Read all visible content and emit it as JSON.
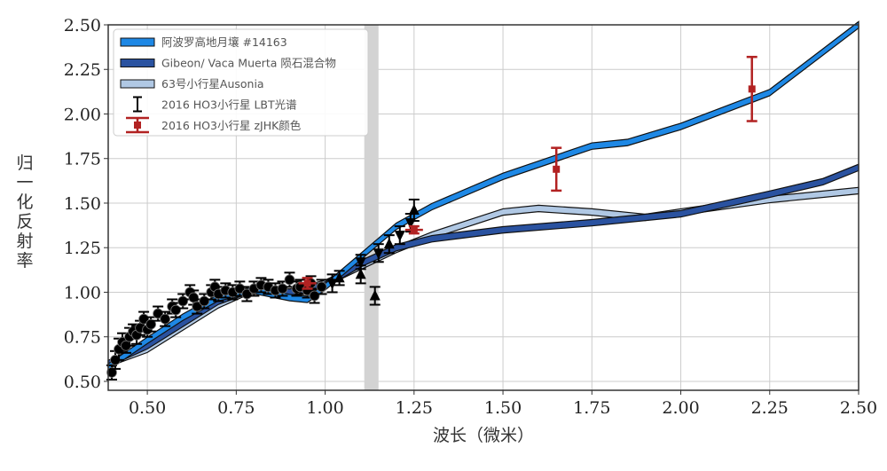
{
  "chart_data": {
    "type": "line",
    "xlabel": "波长（微米）",
    "ylabel": "归一化反射率",
    "xlim": [
      0.39,
      2.5
    ],
    "ylim": [
      0.45,
      2.5
    ],
    "xticks": [
      "0.50",
      "0.75",
      "1.00",
      "1.25",
      "1.50",
      "1.75",
      "2.00",
      "2.25",
      "2.50"
    ],
    "yticks": [
      "0.50",
      "0.75",
      "1.00",
      "1.25",
      "1.50",
      "1.75",
      "2.00",
      "2.25",
      "2.50"
    ],
    "grid": true,
    "legend_position": "top-left",
    "shaded_band": [
      1.11,
      1.15
    ],
    "series": [
      {
        "name": "阿波罗高地月壤 #14163",
        "kind": "band",
        "color": "#1e88e5",
        "x": [
          0.39,
          0.5,
          0.6,
          0.7,
          0.8,
          0.9,
          0.95,
          1.0,
          1.1,
          1.2,
          1.3,
          1.5,
          1.75,
          1.85,
          2.0,
          2.25,
          2.5
        ],
        "y": [
          0.58,
          0.73,
          0.86,
          0.97,
          1.01,
          0.97,
          0.96,
          1.03,
          1.2,
          1.37,
          1.48,
          1.65,
          1.82,
          1.84,
          1.93,
          2.12,
          2.5
        ]
      },
      {
        "name": "Gibeon/ Vaca Muerta 陨石混合物",
        "kind": "band",
        "color": "#2a52a0",
        "x": [
          0.39,
          0.5,
          0.7,
          0.8,
          0.9,
          1.0,
          1.1,
          1.2,
          1.3,
          1.5,
          1.75,
          2.0,
          2.25,
          2.4,
          2.5
        ],
        "y": [
          0.6,
          0.7,
          0.95,
          1.02,
          1.0,
          1.04,
          1.16,
          1.25,
          1.3,
          1.35,
          1.39,
          1.44,
          1.55,
          1.62,
          1.7
        ]
      },
      {
        "name": "63号小行星Ausonia",
        "kind": "band",
        "color": "#b0c8e4",
        "x": [
          0.39,
          0.5,
          0.7,
          0.8,
          0.9,
          1.0,
          1.2,
          1.3,
          1.5,
          1.6,
          1.75,
          1.9,
          2.0,
          2.25,
          2.5
        ],
        "y": [
          0.6,
          0.68,
          0.93,
          1.02,
          1.0,
          1.05,
          1.24,
          1.32,
          1.45,
          1.47,
          1.45,
          1.42,
          1.45,
          1.52,
          1.57
        ]
      },
      {
        "name": "2016 HO3小行星 LBT光谱",
        "kind": "errorbar",
        "color": "#000000",
        "circles": [
          [
            0.4,
            0.55,
            0.04
          ],
          [
            0.41,
            0.62,
            0.05
          ],
          [
            0.42,
            0.68,
            0.06
          ],
          [
            0.43,
            0.72,
            0.05
          ],
          [
            0.44,
            0.7,
            0.04
          ],
          [
            0.45,
            0.75,
            0.05
          ],
          [
            0.46,
            0.78,
            0.04
          ],
          [
            0.47,
            0.76,
            0.05
          ],
          [
            0.48,
            0.8,
            0.04
          ],
          [
            0.49,
            0.85,
            0.04
          ],
          [
            0.5,
            0.79,
            0.04
          ],
          [
            0.51,
            0.82,
            0.04
          ],
          [
            0.53,
            0.88,
            0.04
          ],
          [
            0.55,
            0.85,
            0.04
          ],
          [
            0.57,
            0.92,
            0.04
          ],
          [
            0.58,
            0.9,
            0.04
          ],
          [
            0.6,
            0.95,
            0.04
          ],
          [
            0.62,
            1.0,
            0.04
          ],
          [
            0.63,
            0.97,
            0.04
          ],
          [
            0.64,
            0.92,
            0.04
          ],
          [
            0.66,
            0.95,
            0.04
          ],
          [
            0.68,
            1.0,
            0.04
          ],
          [
            0.69,
            1.03,
            0.04
          ],
          [
            0.7,
            0.99,
            0.04
          ],
          [
            0.72,
            1.01,
            0.04
          ],
          [
            0.74,
            1.0,
            0.04
          ],
          [
            0.76,
            1.02,
            0.04
          ],
          [
            0.78,
            0.99,
            0.04
          ],
          [
            0.8,
            1.02,
            0.04
          ],
          [
            0.82,
            1.04,
            0.04
          ],
          [
            0.84,
            1.03,
            0.04
          ],
          [
            0.86,
            1.01,
            0.04
          ],
          [
            0.88,
            1.02,
            0.04
          ],
          [
            0.9,
            1.07,
            0.04
          ],
          [
            0.92,
            1.02,
            0.04
          ],
          [
            0.93,
            1.03,
            0.04
          ],
          [
            0.95,
            1.01,
            0.04
          ],
          [
            0.96,
            1.05,
            0.04
          ],
          [
            0.97,
            0.98,
            0.04
          ],
          [
            0.99,
            1.03,
            0.04
          ]
        ],
        "down_triangles": [
          [
            1.02,
            1.05,
            0.05
          ],
          [
            1.1,
            1.17,
            0.04
          ],
          [
            1.15,
            1.22,
            0.05
          ],
          [
            1.21,
            1.32,
            0.05
          ],
          [
            1.24,
            1.39,
            0.05
          ]
        ],
        "up_triangles": [
          [
            1.04,
            1.08,
            0.04
          ],
          [
            1.1,
            1.1,
            0.05
          ],
          [
            1.14,
            0.98,
            0.05
          ],
          [
            1.18,
            1.27,
            0.05
          ],
          [
            1.25,
            1.46,
            0.06
          ]
        ]
      },
      {
        "name": "2016 HO3小行星 zJHK颜色",
        "kind": "errorbar",
        "color": "#b22222",
        "points": [
          [
            0.95,
            1.05,
            0.03,
            0.025
          ],
          [
            1.25,
            1.35,
            0.02,
            0.025
          ],
          [
            1.65,
            1.69,
            0.12,
            0.0
          ],
          [
            2.2,
            2.14,
            0.18,
            0.0
          ]
        ]
      }
    ]
  }
}
